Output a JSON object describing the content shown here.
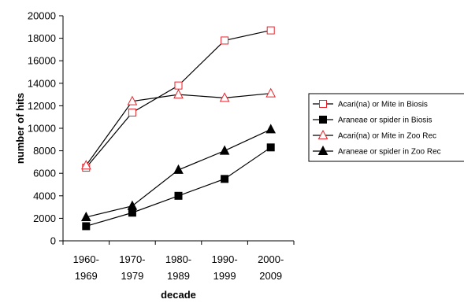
{
  "chart_data": {
    "type": "line",
    "title": "",
    "xlabel": "decade",
    "ylabel": "number of hits",
    "categories": [
      [
        "1960-",
        "1969"
      ],
      [
        "1970-",
        "1979"
      ],
      [
        "1980-",
        "1989"
      ],
      [
        "1990-",
        "1999"
      ],
      [
        "2000-",
        "2009"
      ]
    ],
    "ylim": [
      0,
      20000
    ],
    "yticks": [
      0,
      2000,
      4000,
      6000,
      8000,
      10000,
      12000,
      14000,
      16000,
      18000,
      20000
    ],
    "grid": false,
    "legend_position": "right",
    "series": [
      {
        "name": "Acari(na) or Mite in Biosis",
        "marker": "square-open",
        "color": "#e8222a",
        "values": [
          6500,
          11400,
          13800,
          17800,
          18700
        ]
      },
      {
        "name": "Araneae or spider in Biosis",
        "marker": "square-filled",
        "color": "#000000",
        "values": [
          1300,
          2500,
          4000,
          5500,
          8300
        ]
      },
      {
        "name": "Acari(na) or Mite in Zoo Rec",
        "marker": "triangle-open",
        "color": "#e8222a",
        "values": [
          6700,
          12400,
          13000,
          12700,
          13100
        ]
      },
      {
        "name": "Araneae or spider in Zoo Rec",
        "marker": "triangle-filled",
        "color": "#000000",
        "values": [
          2100,
          3100,
          6300,
          8000,
          9900
        ]
      }
    ]
  }
}
